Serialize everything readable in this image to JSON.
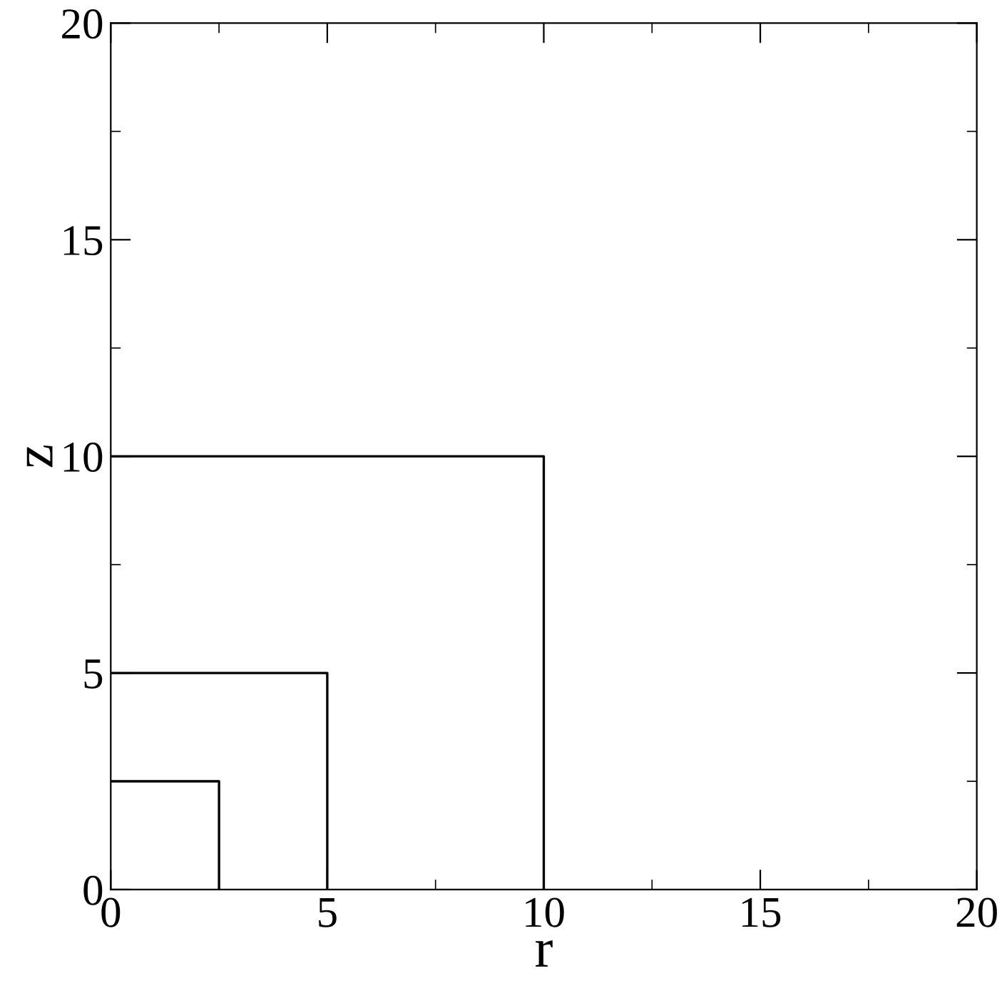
{
  "chart_data": {
    "type": "line",
    "xlabel": "r",
    "ylabel": "z",
    "series": [
      {
        "color": "#000000",
        "x": [
          0,
          2.5,
          2.5
        ],
        "values": [
          2.5,
          2.5,
          0
        ]
      },
      {
        "color": "#000000",
        "x": [
          0,
          5,
          5
        ],
        "values": [
          5,
          5,
          0
        ]
      },
      {
        "color": "#000000",
        "x": [
          0,
          10,
          10
        ],
        "values": [
          10,
          10,
          0
        ]
      }
    ],
    "xlim": [
      0,
      20
    ],
    "ylim": [
      0,
      20
    ],
    "xticks": [
      0,
      {
        "value": 2.5,
        "label": null
      },
      5,
      {
        "value": 7.5,
        "label": null
      },
      10,
      {
        "value": 12.5,
        "label": null
      },
      15,
      {
        "value": 17.5,
        "label": null
      },
      20
    ],
    "yticks": [
      0,
      {
        "value": 2.5,
        "label": null
      },
      5,
      {
        "value": 7.5,
        "label": null
      },
      10,
      {
        "value": 12.5,
        "label": null
      },
      15,
      {
        "value": 17.5,
        "label": null
      },
      20
    ],
    "marker": "none",
    "line_style": "solid"
  }
}
